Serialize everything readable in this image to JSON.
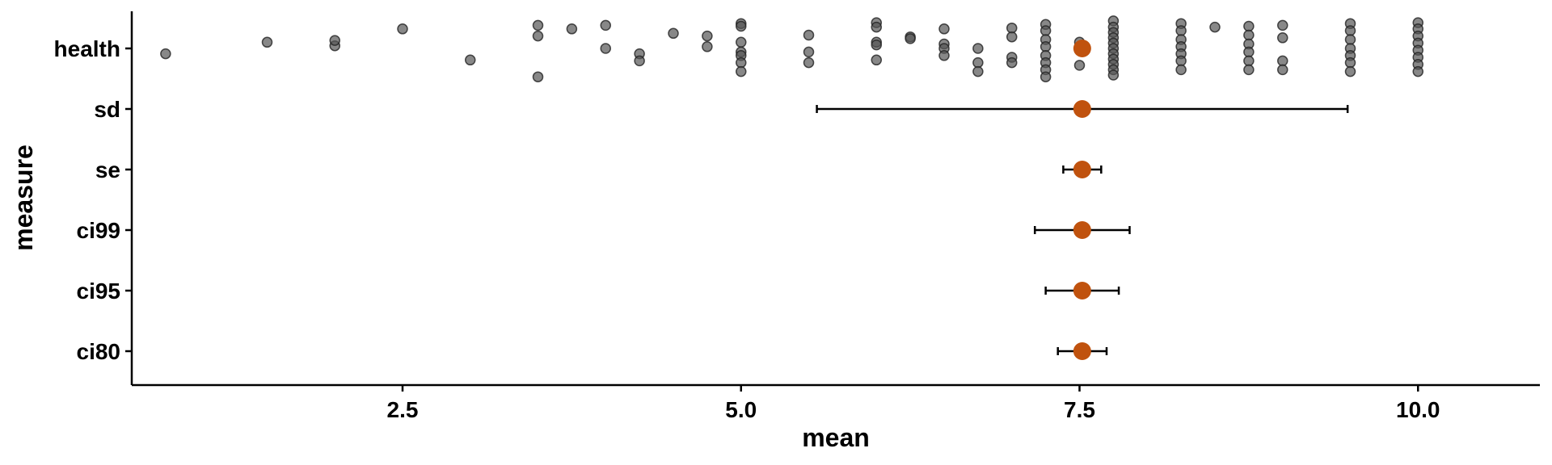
{
  "chart_data": {
    "type": "scatter",
    "xlabel": "mean",
    "ylabel": "measure",
    "xlim": [
      0.5,
      10.9
    ],
    "x_ticks": [
      2.5,
      5.0,
      7.5,
      10.0
    ],
    "x_tick_labels": [
      "2.5",
      "5.0",
      "7.5",
      "10.0"
    ],
    "categories": [
      "health",
      "sd",
      "se",
      "ci99",
      "ci95",
      "ci80"
    ],
    "grid": false,
    "legend": "none",
    "colors": {
      "point": "#555555",
      "mean": "#C0520E",
      "errorbar": "#000000",
      "axis": "#000000"
    },
    "mean_value": 7.52,
    "intervals": [
      {
        "category": "sd",
        "mean": 7.52,
        "low": 5.56,
        "high": 9.48
      },
      {
        "category": "se",
        "mean": 7.52,
        "low": 7.38,
        "high": 7.66
      },
      {
        "category": "ci99",
        "mean": 7.52,
        "low": 7.17,
        "high": 7.87
      },
      {
        "category": "ci95",
        "mean": 7.52,
        "low": 7.25,
        "high": 7.79
      },
      {
        "category": "ci80",
        "mean": 7.52,
        "low": 7.34,
        "high": 7.7
      }
    ],
    "health_points": [
      [
        0.75,
        -0.06
      ],
      [
        1.5,
        0.07
      ],
      [
        2.0,
        0.03
      ],
      [
        2.0,
        0.09
      ],
      [
        2.5,
        0.22
      ],
      [
        3.0,
        -0.13
      ],
      [
        3.5,
        0.26
      ],
      [
        3.5,
        0.14
      ],
      [
        3.5,
        -0.32
      ],
      [
        3.75,
        0.22
      ],
      [
        4.0,
        0.26
      ],
      [
        4.0,
        0.0
      ],
      [
        4.25,
        -0.06
      ],
      [
        4.25,
        -0.14
      ],
      [
        4.5,
        0.17
      ],
      [
        4.75,
        0.14
      ],
      [
        4.75,
        0.02
      ],
      [
        5.0,
        0.28
      ],
      [
        5.0,
        0.25
      ],
      [
        5.0,
        0.07
      ],
      [
        5.0,
        -0.04
      ],
      [
        5.0,
        -0.08
      ],
      [
        5.0,
        -0.16
      ],
      [
        5.0,
        -0.26
      ],
      [
        5.5,
        0.15
      ],
      [
        5.5,
        -0.04
      ],
      [
        5.5,
        -0.16
      ],
      [
        6.0,
        0.29
      ],
      [
        6.0,
        0.24
      ],
      [
        6.0,
        0.07
      ],
      [
        6.0,
        0.04
      ],
      [
        6.0,
        -0.13
      ],
      [
        6.25,
        0.13
      ],
      [
        6.25,
        0.11
      ],
      [
        6.5,
        0.22
      ],
      [
        6.5,
        0.05
      ],
      [
        6.5,
        0.0
      ],
      [
        6.5,
        -0.08
      ],
      [
        6.75,
        0.0
      ],
      [
        6.75,
        -0.16
      ],
      [
        6.75,
        -0.26
      ],
      [
        7.0,
        0.23
      ],
      [
        7.0,
        0.13
      ],
      [
        7.0,
        -0.1
      ],
      [
        7.0,
        -0.16
      ],
      [
        7.25,
        0.27
      ],
      [
        7.25,
        0.2
      ],
      [
        7.25,
        0.1
      ],
      [
        7.25,
        0.02
      ],
      [
        7.25,
        -0.08
      ],
      [
        7.25,
        -0.16
      ],
      [
        7.25,
        -0.24
      ],
      [
        7.25,
        -0.32
      ],
      [
        7.5,
        0.07
      ],
      [
        7.5,
        -0.02
      ],
      [
        7.5,
        -0.19
      ],
      [
        7.75,
        0.31
      ],
      [
        7.75,
        0.24
      ],
      [
        7.75,
        0.18
      ],
      [
        7.75,
        0.12
      ],
      [
        7.75,
        0.06
      ],
      [
        7.75,
        0.0
      ],
      [
        7.75,
        -0.06
      ],
      [
        7.75,
        -0.12
      ],
      [
        7.75,
        -0.18
      ],
      [
        7.75,
        -0.24
      ],
      [
        7.75,
        -0.3
      ],
      [
        8.25,
        0.28
      ],
      [
        8.25,
        0.2
      ],
      [
        8.25,
        0.1
      ],
      [
        8.25,
        0.02
      ],
      [
        8.25,
        -0.06
      ],
      [
        8.25,
        -0.14
      ],
      [
        8.25,
        -0.24
      ],
      [
        8.5,
        0.24
      ],
      [
        8.75,
        0.25
      ],
      [
        8.75,
        0.15
      ],
      [
        8.75,
        0.05
      ],
      [
        8.75,
        -0.04
      ],
      [
        8.75,
        -0.14
      ],
      [
        8.75,
        -0.24
      ],
      [
        9.0,
        0.26
      ],
      [
        9.0,
        0.12
      ],
      [
        9.0,
        -0.14
      ],
      [
        9.0,
        -0.24
      ],
      [
        9.5,
        0.28
      ],
      [
        9.5,
        0.2
      ],
      [
        9.5,
        0.1
      ],
      [
        9.5,
        0.0
      ],
      [
        9.5,
        -0.08
      ],
      [
        9.5,
        -0.16
      ],
      [
        9.5,
        -0.26
      ],
      [
        10.0,
        0.29
      ],
      [
        10.0,
        0.22
      ],
      [
        10.0,
        0.14
      ],
      [
        10.0,
        0.06
      ],
      [
        10.0,
        -0.02
      ],
      [
        10.0,
        -0.1
      ],
      [
        10.0,
        -0.18
      ],
      [
        10.0,
        -0.26
      ]
    ]
  }
}
